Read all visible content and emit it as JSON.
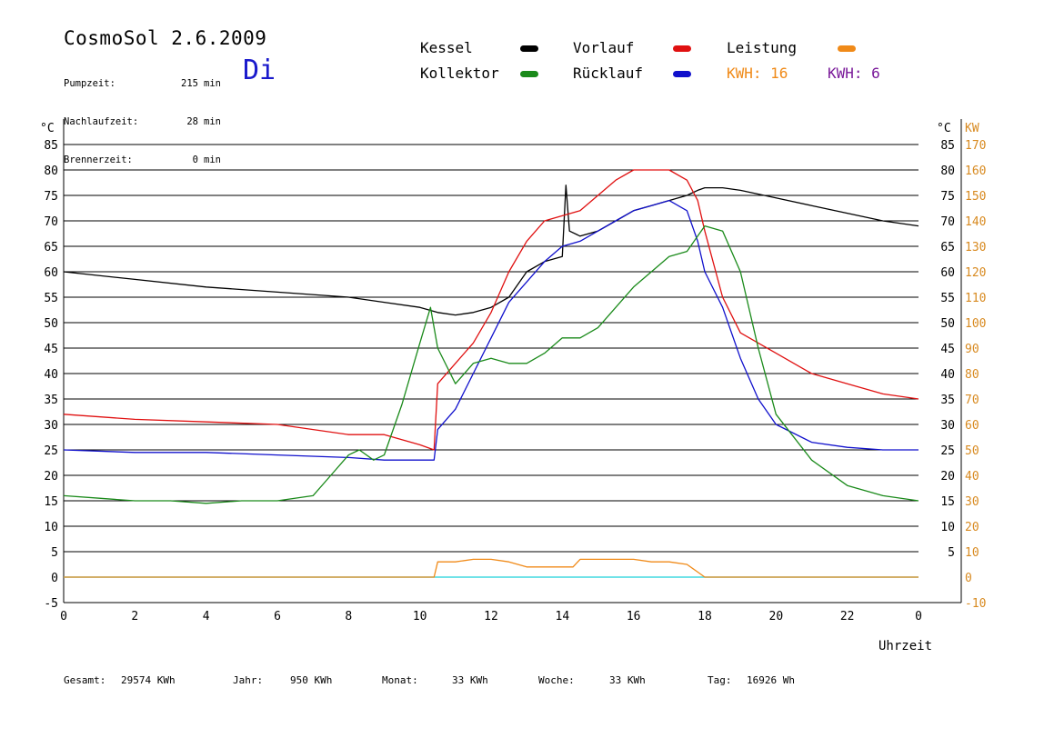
{
  "header": {
    "title": "CosmoSol 2.6.2009",
    "day": "Di",
    "info": [
      {
        "label": "Pumpzeit:",
        "value": "215",
        "unit": "min"
      },
      {
        "label": "Nachlaufzeit:",
        "value": "28",
        "unit": "min"
      },
      {
        "label": "Brennerzeit:",
        "value": "0",
        "unit": "min"
      }
    ]
  },
  "legend": [
    {
      "label": "Kessel",
      "color": "#000000"
    },
    {
      "label": "Vorlauf",
      "color": "#e01010"
    },
    {
      "label": "Leistung",
      "color": "#f08a18"
    },
    {
      "label": "Kollektor",
      "color": "#1a8a1a"
    },
    {
      "label": "Rücklauf",
      "color": "#1010cc"
    }
  ],
  "kwh": [
    {
      "label": "KWH: 16",
      "color": "#f08a18"
    },
    {
      "label": "KWH: 6",
      "color": "#7a1a9a"
    }
  ],
  "footer": [
    {
      "label": "Gesamt:",
      "value": "29574 KWh"
    },
    {
      "label": "Jahr:",
      "value": "950 KWh"
    },
    {
      "label": "Monat:",
      "value": "33 KWh"
    },
    {
      "label": "Woche:",
      "value": "33 KWh"
    },
    {
      "label": "Tag:",
      "value": "16926 Wh"
    }
  ],
  "chart_data": {
    "type": "line",
    "xlabel": "Uhrzeit",
    "ylabel_left": "°C",
    "ylabel_right_temp": "°C",
    "ylabel_right_power": "KW",
    "xlim": [
      0,
      24
    ],
    "ylim": [
      -5,
      90
    ],
    "x_ticks": [
      "0",
      "2",
      "4",
      "6",
      "8",
      "10",
      "12",
      "14",
      "16",
      "18",
      "20",
      "22",
      "0"
    ],
    "y_ticks_left": [
      -5,
      0,
      5,
      10,
      15,
      20,
      25,
      30,
      35,
      40,
      45,
      50,
      55,
      60,
      65,
      70,
      75,
      80,
      85
    ],
    "y_ticks_right_temp": [
      5,
      10,
      15,
      20,
      25,
      30,
      35,
      40,
      45,
      50,
      55,
      60,
      65,
      70,
      75,
      80,
      85
    ],
    "y_ticks_right_power": [
      -10,
      0,
      10,
      20,
      30,
      40,
      50,
      60,
      70,
      80,
      90,
      100,
      110,
      120,
      130,
      140,
      150,
      160,
      170
    ],
    "grid": true,
    "series": [
      {
        "name": "Kessel",
        "color": "#000000",
        "x": [
          0,
          2,
          4,
          6,
          8,
          9,
          10,
          10.5,
          11,
          11.5,
          12,
          12.5,
          13,
          13.5,
          14,
          14.1,
          14.2,
          14.5,
          15,
          15.5,
          16,
          16.5,
          17,
          17.5,
          17.8,
          18,
          18.5,
          19,
          20,
          21,
          22,
          23,
          24
        ],
        "y": [
          60,
          58.5,
          57,
          56,
          55,
          54,
          53,
          52,
          51.5,
          52,
          53,
          55,
          60,
          62,
          63,
          77,
          68,
          67,
          68,
          70,
          72,
          73,
          74,
          75,
          76,
          76.5,
          76.5,
          76,
          74.5,
          73,
          71.5,
          70,
          69
        ]
      },
      {
        "name": "Vorlauf",
        "color": "#e01010",
        "x": [
          0,
          2,
          4,
          6,
          8,
          8.5,
          9,
          10,
          10.4,
          10.5,
          11,
          11.5,
          12,
          12.5,
          13,
          13.5,
          14,
          14.5,
          15,
          15.5,
          16,
          16.5,
          17,
          17.5,
          17.8,
          18,
          18.5,
          19,
          20,
          21,
          22,
          23,
          24
        ],
        "y": [
          32,
          31,
          30.5,
          30,
          28,
          28,
          28,
          26,
          25,
          38,
          42,
          46,
          52,
          60,
          66,
          70,
          71,
          72,
          75,
          78,
          80,
          80,
          80,
          78,
          74,
          68,
          55,
          48,
          44,
          40,
          38,
          36,
          35
        ]
      },
      {
        "name": "Rücklauf",
        "color": "#1010cc",
        "x": [
          0,
          2,
          4,
          6,
          8,
          9,
          10,
          10.4,
          10.5,
          11,
          11.5,
          12,
          12.5,
          13,
          13.5,
          14,
          14.5,
          15,
          15.5,
          16,
          16.5,
          17,
          17.5,
          17.8,
          18,
          18.5,
          19,
          19.5,
          20,
          21,
          22,
          23,
          24
        ],
        "y": [
          25,
          24.5,
          24.5,
          24,
          23.5,
          23,
          23,
          23,
          29,
          33,
          40,
          47,
          54,
          58,
          62,
          65,
          66,
          68,
          70,
          72,
          73,
          74,
          72,
          66,
          60,
          53,
          43,
          35,
          30,
          26.5,
          25.5,
          25,
          25
        ]
      },
      {
        "name": "Kollektor",
        "color": "#1a8a1a",
        "x": [
          0,
          1,
          2,
          3,
          4,
          5,
          6,
          7,
          7.5,
          8,
          8.3,
          8.7,
          9,
          9.5,
          10,
          10.3,
          10.5,
          11,
          11.5,
          12,
          12.5,
          13,
          13.5,
          14,
          14.5,
          15,
          15.5,
          16,
          16.5,
          17,
          17.5,
          18,
          18.5,
          19,
          19.5,
          20,
          21,
          22,
          23,
          24
        ],
        "y": [
          16,
          15.5,
          15,
          15,
          14.5,
          15,
          15,
          16,
          20,
          24,
          25,
          23,
          24,
          34,
          46,
          53,
          45,
          38,
          42,
          43,
          42,
          42,
          44,
          47,
          47,
          49,
          53,
          57,
          60,
          63,
          64,
          69,
          68,
          60,
          45,
          32,
          23,
          18,
          16,
          15
        ]
      },
      {
        "name": "Leistung",
        "color": "#f08a18",
        "x": [
          0,
          10.4,
          10.5,
          11,
          11.5,
          12,
          12.5,
          13,
          13.5,
          14,
          14.3,
          14.5,
          15,
          15.5,
          16,
          16.5,
          17,
          17.5,
          17.8,
          18,
          24
        ],
        "y": [
          0,
          0,
          3,
          3,
          3.5,
          3.5,
          3,
          2,
          2,
          2,
          2,
          3.5,
          3.5,
          3.5,
          3.5,
          3,
          3,
          2.5,
          1,
          0,
          0
        ]
      }
    ]
  }
}
